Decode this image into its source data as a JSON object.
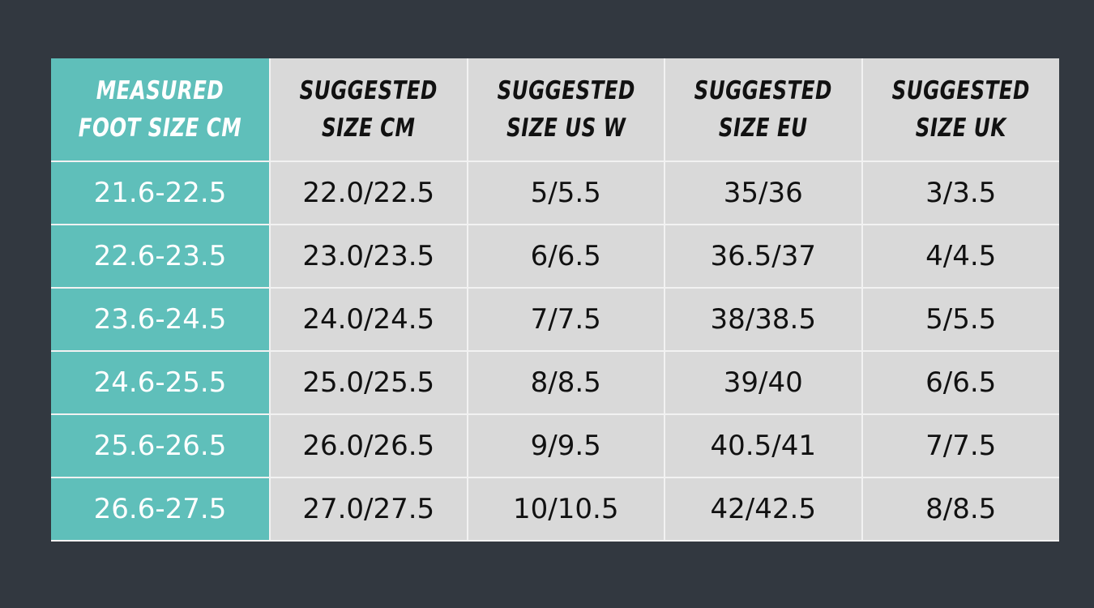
{
  "colors": {
    "background": "#323840",
    "accent": "#5fbfba",
    "cell": "#d9d9d9"
  },
  "headers": [
    "MEASURED\nFOOT SIZE CM",
    "SUGGESTED\nSIZE CM",
    "SUGGESTED\nSIZE US W",
    "SUGGESTED\nSIZE EU",
    "SUGGESTED\nSIZE UK"
  ],
  "rows": [
    [
      "21.6-22.5",
      "22.0/22.5",
      "5/5.5",
      "35/36",
      "3/3.5"
    ],
    [
      "22.6-23.5",
      "23.0/23.5",
      "6/6.5",
      "36.5/37",
      "4/4.5"
    ],
    [
      "23.6-24.5",
      "24.0/24.5",
      "7/7.5",
      "38/38.5",
      "5/5.5"
    ],
    [
      "24.6-25.5",
      "25.0/25.5",
      "8/8.5",
      "39/40",
      "6/6.5"
    ],
    [
      "25.6-26.5",
      "26.0/26.5",
      "9/9.5",
      "40.5/41",
      "7/7.5"
    ],
    [
      "26.6-27.5",
      "27.0/27.5",
      "10/10.5",
      "42/42.5",
      "8/8.5"
    ]
  ]
}
